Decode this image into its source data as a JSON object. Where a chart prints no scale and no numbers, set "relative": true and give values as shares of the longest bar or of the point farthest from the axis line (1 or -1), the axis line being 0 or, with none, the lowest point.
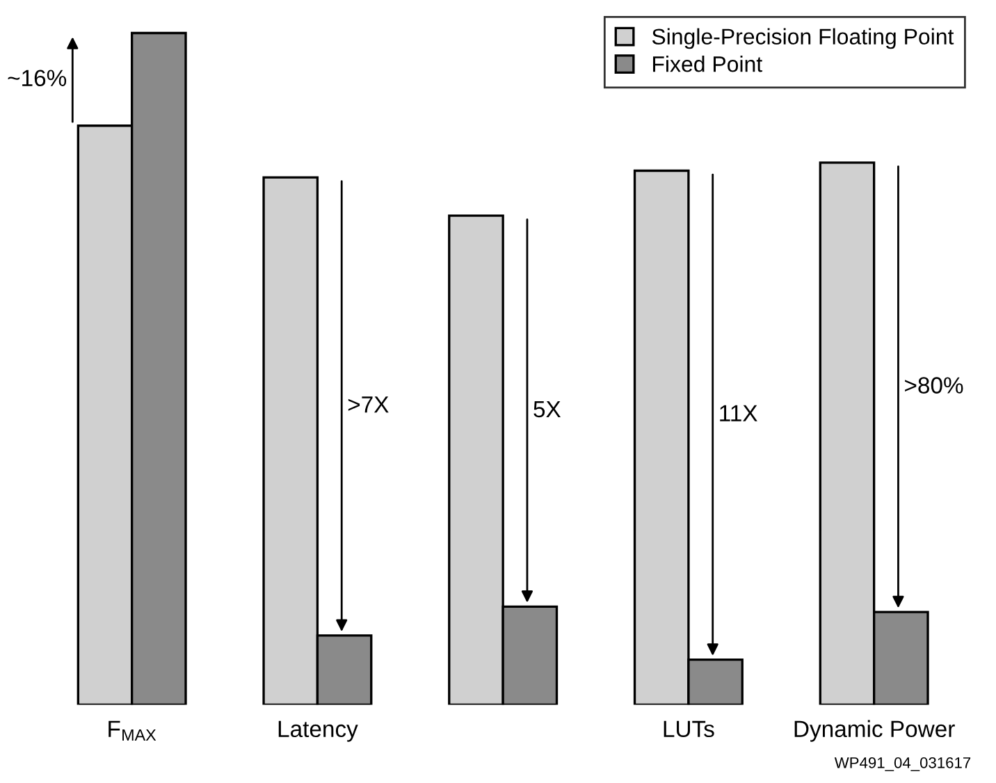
{
  "chart_data": {
    "type": "bar",
    "relative": true,
    "categories": [
      "F$_{MAX}$",
      "Latency",
      null,
      "LUTs",
      "Dynamic Power"
    ],
    "series": [
      {
        "name": "Single-Precision Floating Point",
        "color": "#d0d0d0",
        "values": [
          0.862,
          0.785,
          0.728,
          0.795,
          0.807
        ]
      },
      {
        "name": "Fixed Point",
        "color": "#8a8a8a",
        "values": [
          1,
          0.103,
          0.146,
          0.067,
          0.138
        ]
      }
    ],
    "annotations": [
      "~16%",
      ">7X",
      "5X",
      "11X",
      ">80%",
      "WP491_04_031617"
    ],
    "legend": "top right",
    "grid": false
  }
}
